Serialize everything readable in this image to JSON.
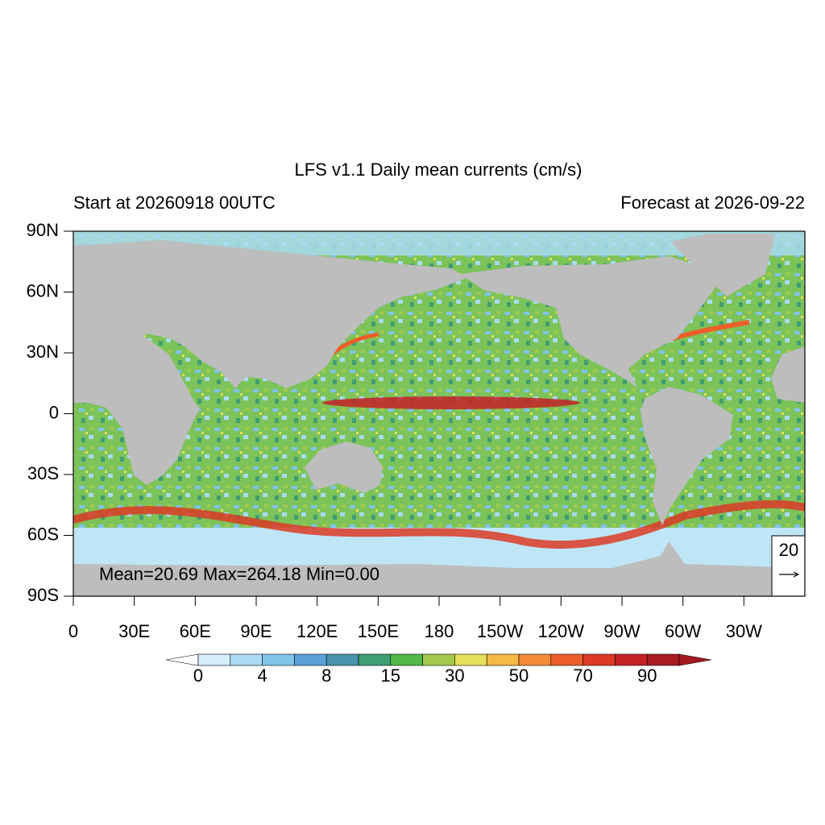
{
  "chart_data": {
    "type": "map",
    "title": "LFS v1.1 Daily mean currents (cm/s)",
    "subtitle_left": "Start at 20260918 00UTC",
    "subtitle_right": "Forecast at 2026-09-22",
    "annotation": "Mean=20.69  Max=264.18  Min=0.00",
    "reference_vector": "20",
    "xlim": [
      0,
      360
    ],
    "xticks": [
      0,
      {
        "value": 30,
        "label": "30E"
      },
      {
        "value": 60,
        "label": "60E"
      },
      {
        "value": 90,
        "label": "90E"
      },
      {
        "value": 120,
        "label": "120E"
      },
      {
        "value": 150,
        "label": "150E"
      },
      180,
      {
        "value": 210,
        "label": "150W"
      },
      {
        "value": 240,
        "label": "120W"
      },
      {
        "value": 270,
        "label": "90W"
      },
      {
        "value": 300,
        "label": "60W"
      },
      {
        "value": 330,
        "label": "30W"
      }
    ],
    "ylim": [
      -90,
      90
    ],
    "yticks": [
      {
        "value": 90,
        "label": "90N"
      },
      {
        "value": 60,
        "label": "60N"
      },
      {
        "value": 30,
        "label": "30N"
      },
      0,
      {
        "value": -30,
        "label": "30S"
      },
      {
        "value": -60,
        "label": "60S"
      },
      {
        "value": -90,
        "label": "90S"
      }
    ],
    "colorbar": {
      "labels": [
        0,
        4,
        8,
        15,
        30,
        50,
        70,
        90
      ],
      "colors": [
        "#d4eefa",
        "#a9dbf2",
        "#82c3ea",
        "#5b9ed8",
        "#4a93ad",
        "#3f9e72",
        "#52b848",
        "#a4c94c",
        "#e6e05a",
        "#f6b844",
        "#f48a34",
        "#ec5f29",
        "#dc3a26",
        "#c62127",
        "#aa1b22"
      ],
      "under_color": "#ffffff",
      "over_color": "#a3191f"
    }
  }
}
